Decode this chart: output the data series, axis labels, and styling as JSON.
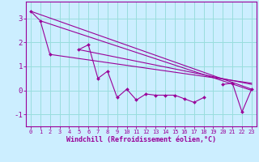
{
  "xlabel": "Windchill (Refroidissement éolien,°C)",
  "background_color": "#cceeff",
  "grid_color": "#99dddd",
  "line_color": "#990099",
  "marker_color": "#990099",
  "x_hours": [
    0,
    1,
    2,
    3,
    4,
    5,
    6,
    7,
    8,
    9,
    10,
    11,
    12,
    13,
    14,
    15,
    16,
    17,
    18,
    19,
    20,
    21,
    22,
    23
  ],
  "y_windchill": [
    3.3,
    2.9,
    1.5,
    null,
    null,
    1.7,
    1.9,
    0.5,
    0.8,
    -0.3,
    0.05,
    -0.4,
    -0.15,
    -0.2,
    -0.2,
    -0.2,
    -0.35,
    -0.5,
    -0.3,
    null,
    0.25,
    0.3,
    -0.9,
    0.05
  ],
  "linear1": [
    [
      0,
      3.3
    ],
    [
      23,
      0.05
    ]
  ],
  "linear2": [
    [
      1,
      2.9
    ],
    [
      23,
      0.0
    ]
  ],
  "linear3": [
    [
      2,
      1.5
    ],
    [
      23,
      0.3
    ]
  ],
  "linear4": [
    [
      5,
      1.7
    ],
    [
      23,
      0.25
    ]
  ],
  "ylim": [
    -1.5,
    3.7
  ],
  "xlim": [
    -0.5,
    23.5
  ],
  "yticks": [
    -1,
    0,
    1,
    2,
    3
  ],
  "xticks": [
    0,
    1,
    2,
    3,
    4,
    5,
    6,
    7,
    8,
    9,
    10,
    11,
    12,
    13,
    14,
    15,
    16,
    17,
    18,
    19,
    20,
    21,
    22,
    23
  ]
}
